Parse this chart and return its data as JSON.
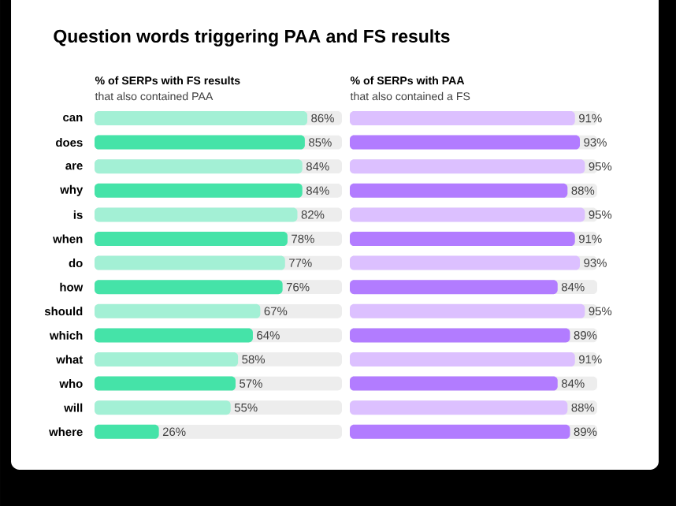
{
  "chart_data": [
    {
      "type": "bar",
      "orientation": "horizontal",
      "title": "% of SERPs with FS results",
      "subtitle": "that also contained PAA",
      "annotations": [
        "Question words triggering PAA and FS results"
      ],
      "categories": [
        "can",
        "does",
        "are",
        "why",
        "is",
        "when",
        "do",
        "how",
        "should",
        "which",
        "what",
        "who",
        "will",
        "where"
      ],
      "values": [
        86,
        85,
        84,
        84,
        82,
        78,
        77,
        76,
        67,
        64,
        58,
        57,
        55,
        26
      ],
      "value_labels": [
        "86%",
        "85%",
        "84%",
        "84%",
        "82%",
        "78%",
        "77%",
        "76%",
        "67%",
        "64%",
        "58%",
        "57%",
        "55%",
        "26%"
      ],
      "colors": [
        "#a3f0d5",
        "#45e3a8",
        "#a3f0d5",
        "#45e3a8",
        "#a3f0d5",
        "#45e3a8",
        "#a3f0d5",
        "#45e3a8",
        "#a3f0d5",
        "#45e3a8",
        "#a3f0d5",
        "#45e3a8",
        "#a3f0d5",
        "#45e3a8"
      ],
      "xlim": [
        0,
        100
      ],
      "tick_labels": "y"
    },
    {
      "type": "bar",
      "orientation": "horizontal",
      "title": "% of SERPs with PAA",
      "subtitle": "that also contained a FS",
      "categories": [
        null,
        null,
        null,
        null,
        null,
        null,
        null,
        null,
        null,
        null,
        null,
        null,
        null,
        null
      ],
      "values": [
        91,
        93,
        95,
        88,
        95,
        91,
        93,
        84,
        95,
        89,
        91,
        84,
        88,
        89
      ],
      "value_labels": [
        "91%",
        "93%",
        "95%",
        "88%",
        "95%",
        "91%",
        "93%",
        "84%",
        "95%",
        "89%",
        "91%",
        "84%",
        "88%",
        "89%"
      ],
      "colors": [
        "#dcc0ff",
        "#b27cff",
        "#dcc0ff",
        "#b27cff",
        "#dcc0ff",
        "#b27cff",
        "#dcc0ff",
        "#b27cff",
        "#dcc0ff",
        "#b27cff",
        "#dcc0ff",
        "#b27cff",
        "#dcc0ff",
        "#b27cff"
      ],
      "xlim": [
        0,
        100
      ],
      "tick_labels": false
    }
  ]
}
